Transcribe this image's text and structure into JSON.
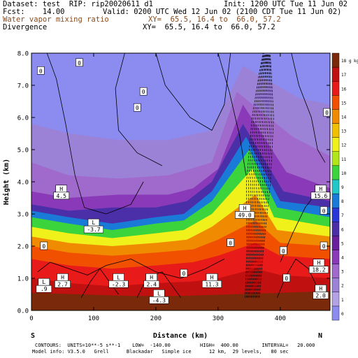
{
  "header": {
    "dataset_line": "Dataset: test  RIP: rip20020611 d1",
    "init_line": "Init: 1200 UTC Tue 11 Jun 02",
    "fcst_line": "Fcst:    14.00",
    "valid_line": "Valid: 0200 UTC Wed 12 Jun 02 (2100 CDT Tue 11 Jun 02)",
    "field1": "Water vapor mixing ratio",
    "xy1": "XY=  65.5, 16.4 to  66.0, 57.2",
    "field2": "Divergence",
    "xy2": "XY=  65.5, 16.4 to  66.0, 57.2"
  },
  "chart_data": {
    "type": "heatmap",
    "title": "",
    "xlabel": "Distance (km)",
    "ylabel": "Height (km)",
    "xlim": [
      0,
      480
    ],
    "ylim": [
      0,
      8
    ],
    "x_ticks": [
      0,
      100,
      200,
      300,
      400
    ],
    "y_ticks": [
      0.0,
      1.0,
      2.0,
      3.0,
      4.0,
      5.0,
      6.0,
      7.0,
      8.0
    ],
    "x_tick_labels": [
      "0",
      "100",
      "200",
      "300",
      "400"
    ],
    "y_tick_labels": [
      "0.0",
      "1.0",
      "2.0",
      "3.0",
      "4.0",
      "5.0",
      "6.0",
      "7.0",
      "8.0"
    ],
    "endpoint_left": "S",
    "endpoint_right": "N",
    "colorbar": {
      "units": "g kg-1",
      "levels": [
        0,
        1,
        2,
        3,
        4,
        5,
        6,
        7,
        8,
        9,
        10,
        11,
        12,
        13,
        14,
        15,
        16,
        17,
        18
      ],
      "colors": [
        "#8b8bf0",
        "#b3a3e6",
        "#9c82d6",
        "#a06acc",
        "#8a3ab8",
        "#6a1f9e",
        "#4a2fa8",
        "#2a38d8",
        "#1a7ad8",
        "#22c8c8",
        "#3cd43c",
        "#b0e61a",
        "#f0f01a",
        "#f0c000",
        "#f08a00",
        "#f05000",
        "#e81a1a",
        "#c01010",
        "#7a2a0a"
      ]
    },
    "moisture_bands": [
      {
        "level": 0,
        "top": [
          [
            0,
            6.7
          ],
          [
            60,
            6.4
          ],
          [
            150,
            6.2
          ],
          [
            250,
            6.4
          ],
          [
            320,
            7.2
          ],
          [
            380,
            8
          ],
          [
            480,
            8
          ]
        ]
      },
      {
        "level": 2,
        "top": [
          [
            0,
            5.8
          ],
          [
            60,
            5.5
          ],
          [
            140,
            5.3
          ],
          [
            220,
            5.3
          ],
          [
            290,
            5.6
          ],
          [
            340,
            7.6
          ],
          [
            430,
            6.6
          ],
          [
            480,
            6.4
          ]
        ]
      },
      {
        "level": 3,
        "top": [
          [
            0,
            4.6
          ],
          [
            60,
            4.2
          ],
          [
            140,
            4.1
          ],
          [
            220,
            4.2
          ],
          [
            290,
            4.6
          ],
          [
            330,
            6.8
          ],
          [
            420,
            5.4
          ],
          [
            480,
            4.8
          ]
        ]
      },
      {
        "level": 4,
        "top": [
          [
            0,
            3.7
          ],
          [
            60,
            3.5
          ],
          [
            140,
            3.6
          ],
          [
            220,
            3.6
          ],
          [
            260,
            3.8
          ],
          [
            300,
            4.4
          ],
          [
            340,
            6.4
          ],
          [
            410,
            4.3
          ],
          [
            480,
            3.8
          ]
        ]
      },
      {
        "level": 6,
        "top": [
          [
            0,
            3.3
          ],
          [
            60,
            3.1
          ],
          [
            130,
            3.2
          ],
          [
            200,
            3.2
          ],
          [
            250,
            3.4
          ],
          [
            290,
            4.0
          ],
          [
            340,
            5.8
          ],
          [
            405,
            3.7
          ],
          [
            480,
            3.4
          ]
        ]
      },
      {
        "level": 8,
        "top": [
          [
            0,
            3.1
          ],
          [
            60,
            2.9
          ],
          [
            130,
            2.7
          ],
          [
            200,
            2.9
          ],
          [
            245,
            3.0
          ],
          [
            290,
            3.7
          ],
          [
            345,
            5.4
          ],
          [
            400,
            3.4
          ],
          [
            480,
            3.2
          ]
        ]
      },
      {
        "level": 10,
        "top": [
          [
            0,
            2.9
          ],
          [
            60,
            2.7
          ],
          [
            130,
            2.5
          ],
          [
            200,
            2.7
          ],
          [
            245,
            2.8
          ],
          [
            290,
            3.4
          ],
          [
            350,
            5.0
          ],
          [
            395,
            3.2
          ],
          [
            480,
            2.9
          ]
        ]
      },
      {
        "level": 12,
        "top": [
          [
            0,
            2.6
          ],
          [
            60,
            2.4
          ],
          [
            130,
            2.25
          ],
          [
            200,
            2.4
          ],
          [
            245,
            2.5
          ],
          [
            290,
            3.0
          ],
          [
            355,
            4.4
          ],
          [
            390,
            2.9
          ],
          [
            480,
            2.6
          ]
        ]
      },
      {
        "level": 14,
        "top": [
          [
            0,
            2.3
          ],
          [
            60,
            2.1
          ],
          [
            130,
            2.0
          ],
          [
            200,
            2.1
          ],
          [
            250,
            2.2
          ],
          [
            290,
            2.6
          ],
          [
            360,
            3.6
          ],
          [
            395,
            2.5
          ],
          [
            480,
            2.3
          ]
        ]
      },
      {
        "level": 15,
        "top": [
          [
            0,
            2.0
          ],
          [
            60,
            1.8
          ],
          [
            130,
            1.7
          ],
          [
            200,
            1.8
          ],
          [
            260,
            1.9
          ],
          [
            300,
            2.2
          ],
          [
            360,
            2.8
          ],
          [
            400,
            2.1
          ],
          [
            480,
            2.0
          ]
        ]
      },
      {
        "level": 16,
        "top": [
          [
            0,
            1.6
          ],
          [
            60,
            1.4
          ],
          [
            130,
            1.3
          ],
          [
            200,
            1.4
          ],
          [
            260,
            1.5
          ],
          [
            300,
            1.7
          ],
          [
            360,
            2.1
          ],
          [
            400,
            1.7
          ],
          [
            480,
            1.6
          ]
        ]
      },
      {
        "level": 17,
        "top": [
          [
            0,
            1.0
          ],
          [
            60,
            0.85
          ],
          [
            130,
            0.75
          ],
          [
            200,
            0.85
          ],
          [
            260,
            0.9
          ],
          [
            300,
            1.0
          ],
          [
            360,
            1.3
          ],
          [
            400,
            1.1
          ],
          [
            480,
            1.0
          ]
        ]
      },
      {
        "level": 18,
        "top": [
          [
            0,
            0.55
          ],
          [
            80,
            0.5
          ],
          [
            160,
            0.45
          ],
          [
            240,
            0.45
          ],
          [
            320,
            0.5
          ],
          [
            400,
            0.55
          ],
          [
            480,
            0.6
          ]
        ]
      }
    ],
    "contour_labels": [
      {
        "text": "0",
        "x": 15,
        "y": 7.45
      },
      {
        "text": "0",
        "x": 77,
        "y": 7.7
      },
      {
        "text": "0",
        "x": 170,
        "y": 6.3
      },
      {
        "text": "0",
        "x": 180,
        "y": 6.8
      },
      {
        "text": "0",
        "x": 20,
        "y": 2.0
      },
      {
        "text": "0",
        "x": 245,
        "y": 1.15
      },
      {
        "text": "0",
        "x": 320,
        "y": 2.1
      },
      {
        "text": "0",
        "x": 410,
        "y": 1.0
      },
      {
        "text": "0",
        "x": 405,
        "y": 1.85
      },
      {
        "text": "0",
        "x": 470,
        "y": 3.1
      },
      {
        "text": "0",
        "x": 470,
        "y": 2.0
      },
      {
        "text": "0",
        "x": 475,
        "y": 6.15
      }
    ],
    "extrema": [
      {
        "kind": "H",
        "value": "4.5",
        "x": 48,
        "y": 3.7
      },
      {
        "kind": "L",
        "value": "-3.7",
        "x": 100,
        "y": 2.65
      },
      {
        "kind": "H",
        "value": "49.0",
        "x": 343,
        "y": 3.1
      },
      {
        "kind": "H",
        "value": "15.6",
        "x": 465,
        "y": 3.7
      },
      {
        "kind": "L",
        "value": ".9",
        "x": 20,
        "y": 0.8
      },
      {
        "kind": "H",
        "value": "2.7",
        "x": 50,
        "y": 0.95
      },
      {
        "kind": "L",
        "value": "-2.3",
        "x": 140,
        "y": 0.95
      },
      {
        "kind": "H",
        "value": "2.4",
        "x": 193,
        "y": 0.95
      },
      {
        "kind": "L",
        "value": "-4.3",
        "x": 205,
        "y": 0.45
      },
      {
        "kind": "H",
        "value": "11.3",
        "x": 290,
        "y": 0.95
      },
      {
        "kind": "H",
        "value": "18.2",
        "x": 462,
        "y": 1.4
      },
      {
        "kind": "H",
        "value": "2.0",
        "x": 465,
        "y": 0.6
      }
    ]
  },
  "footer": {
    "line1": "CONTOURS:  UNITS=10**-5 s**-1    LOW=  -140.00          HIGH=  400.00        INTERVAL=   20.000",
    "line2": "Model info: V3.5.0   Grell      Blackadar   Simple ice      12 km,  29 levels,   80 sec"
  }
}
